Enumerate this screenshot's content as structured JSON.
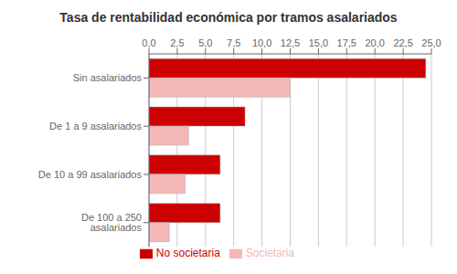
{
  "chart_data": {
    "type": "bar",
    "orientation": "horizontal",
    "title": "Tasa de rentabilidad económica por tramos asalariados",
    "categories": [
      "Sin asalariados",
      "De 1 a 9 asalariados",
      "De 10 a 99 asalariados",
      "De 100 a 250 asalariados"
    ],
    "series": [
      {
        "name": "No societaria",
        "color": "#cc0000",
        "values": [
          24.5,
          8.5,
          6.3,
          6.3
        ]
      },
      {
        "name": "Societaria",
        "color": "#f4b8b8",
        "values": [
          12.5,
          3.5,
          3.2,
          1.8
        ]
      }
    ],
    "xlim": [
      0,
      25
    ],
    "xticks": [
      {
        "value": 0.0,
        "label": "0,0"
      },
      {
        "value": 2.5,
        "label": "2,5"
      },
      {
        "value": 5.0,
        "label": "5,0"
      },
      {
        "value": 7.5,
        "label": "7,5"
      },
      {
        "value": 10.0,
        "label": "10,0"
      },
      {
        "value": 12.5,
        "label": "12,5"
      },
      {
        "value": 15.0,
        "label": "15,0"
      },
      {
        "value": 17.5,
        "label": "17,5"
      },
      {
        "value": 20.0,
        "label": "20,0"
      },
      {
        "value": 22.5,
        "label": "22,5"
      },
      {
        "value": 25.0,
        "label": "25,0"
      }
    ],
    "grid": true,
    "legend": "bottom"
  }
}
